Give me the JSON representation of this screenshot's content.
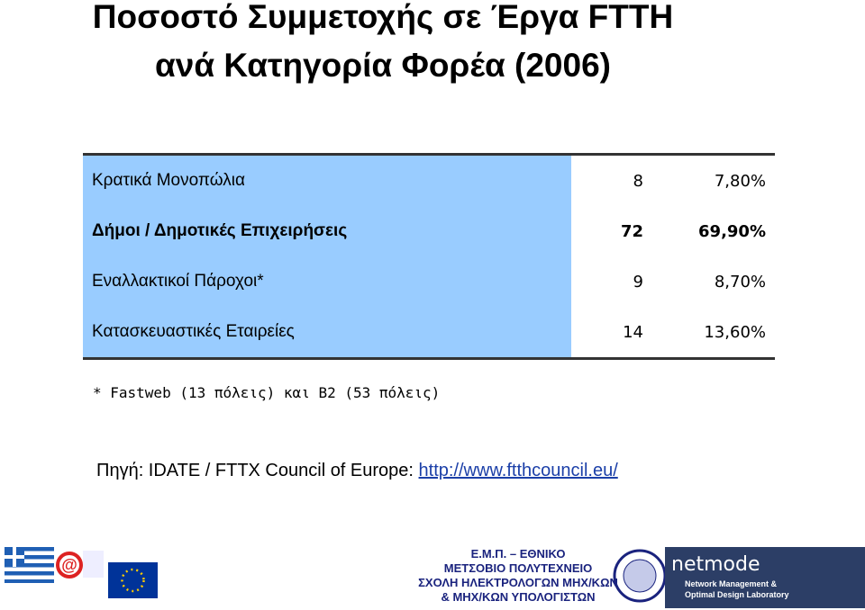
{
  "header": {
    "title_line1": "Ποσοστό Συμμετοχής σε Έργα FTTH",
    "title_line2": "ανά Κατηγορία Φορέα (2006)"
  },
  "table": {
    "rows": [
      [
        "Κρατικά Μονοπώλια",
        "8",
        "7,80%"
      ],
      [
        "Δήμοι / Δημοτικές Επιχειρήσεις",
        "72",
        "69,90%"
      ],
      [
        "Εναλλακτικοί Πάροχοι*",
        "9",
        "8,70%"
      ],
      [
        "Κατασκευαστικές Εταιρείες",
        "14",
        "13,60%"
      ]
    ]
  },
  "footnote": "* Fastweb (13 πόλεις) και B2 (53 πόλεις)",
  "source": {
    "text": "Πηγή: IDATE / FTTX Council of Europe: ",
    "link": "http://www.ftthcouncil.eu/"
  },
  "footer": {
    "lines": [
      "Ε.Μ.Π. – ΕΘΝΙΚΟ",
      "ΜΕΤΣΟΒΙΟ ΠΟΛΥΤΕΧΝΕΙΟ",
      "ΣΧΟΛΗ ΗΛΕΚΤΡΟΛΟΓΩΝ ΜΗΧ/ΚΩΝ",
      "& ΜΗΧ/ΚΩΝ ΥΠΟΛΟΓΙΣΤΩΝ"
    ],
    "logo_name": "netmode",
    "logo_caption1": "Network Management &",
    "logo_caption2": "Optimal Design Laboratory"
  }
}
